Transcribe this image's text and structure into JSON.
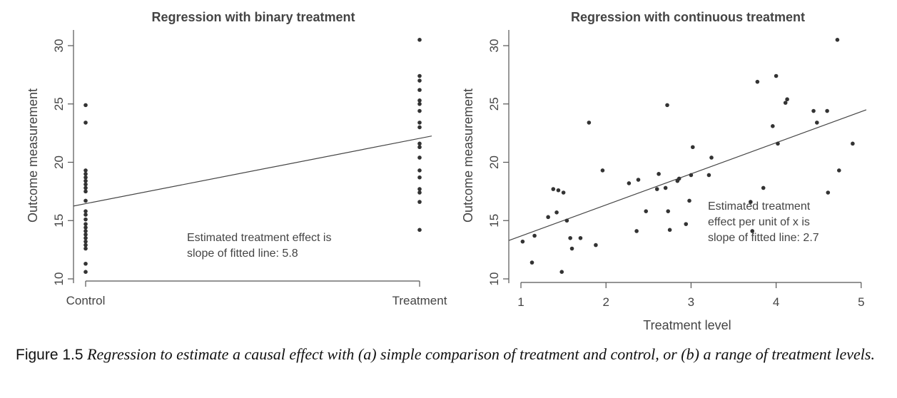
{
  "caption": {
    "label": "Figure 1.5",
    "text": "Regression to estimate a causal effect with (a) simple comparison of treatment and control, or (b) a range of treatment levels."
  },
  "colors": {
    "points": "#333333",
    "line": "#444444",
    "axis": "#555555",
    "text": "#444444"
  },
  "chart_data": [
    {
      "type": "scatter",
      "title": "Regression with binary treatment",
      "xlabel": "",
      "ylabel": "Outcome measurement",
      "x_ticks": [
        {
          "value": 0,
          "label": "Control"
        },
        {
          "value": 1,
          "label": "Treatment"
        }
      ],
      "xlim": [
        0,
        1
      ],
      "ylim": [
        10,
        31
      ],
      "y_ticks": [
        10,
        15,
        20,
        25,
        30
      ],
      "grid": false,
      "series": [
        {
          "points": [
            [
              0,
              24.9
            ],
            [
              0,
              23.4
            ],
            [
              0,
              19.3
            ],
            [
              0,
              19.0
            ],
            [
              0,
              18.7
            ],
            [
              0,
              18.4
            ],
            [
              0,
              18.1
            ],
            [
              0,
              17.8
            ],
            [
              0,
              17.5
            ],
            [
              0,
              16.7
            ],
            [
              0,
              15.8
            ],
            [
              0,
              15.5
            ],
            [
              0,
              15.1
            ],
            [
              0,
              14.7
            ],
            [
              0,
              14.4
            ],
            [
              0,
              14.1
            ],
            [
              0,
              13.8
            ],
            [
              0,
              13.5
            ],
            [
              0,
              13.2
            ],
            [
              0,
              12.9
            ],
            [
              0,
              12.6
            ],
            [
              0,
              11.3
            ],
            [
              0,
              10.6
            ],
            [
              1,
              30.5
            ],
            [
              1,
              27.4
            ],
            [
              1,
              27.0
            ],
            [
              1,
              26.2
            ],
            [
              1,
              25.3
            ],
            [
              1,
              25.0
            ],
            [
              1,
              24.4
            ],
            [
              1,
              23.4
            ],
            [
              1,
              23.0
            ],
            [
              1,
              21.6
            ],
            [
              1,
              21.3
            ],
            [
              1,
              20.4
            ],
            [
              1,
              19.3
            ],
            [
              1,
              18.7
            ],
            [
              1,
              17.7
            ],
            [
              1,
              17.4
            ],
            [
              1,
              16.6
            ],
            [
              1,
              14.2
            ]
          ]
        }
      ],
      "fit_line": {
        "x": [
          -0.045,
          1.045
        ],
        "y": [
          16.2,
          22.3
        ]
      },
      "annotation": [
        "Estimated treatment effect is",
        "slope of fitted line:  5.8"
      ]
    },
    {
      "type": "scatter",
      "title": "Regression with continuous treatment",
      "xlabel": "Treatment level",
      "ylabel": "Outcome measurement",
      "xlim": [
        1,
        5
      ],
      "ylim": [
        10,
        31
      ],
      "x_ticks": [
        1,
        2,
        3,
        4,
        5
      ],
      "y_ticks": [
        10,
        15,
        20,
        25,
        30
      ],
      "grid": false,
      "series": [
        {
          "points": [
            [
              1.02,
              13.2
            ],
            [
              1.13,
              11.4
            ],
            [
              1.16,
              13.7
            ],
            [
              1.32,
              15.3
            ],
            [
              1.38,
              17.7
            ],
            [
              1.42,
              15.7
            ],
            [
              1.44,
              17.6
            ],
            [
              1.48,
              10.6
            ],
            [
              1.5,
              17.4
            ],
            [
              1.54,
              15.0
            ],
            [
              1.58,
              13.5
            ],
            [
              1.6,
              12.6
            ],
            [
              1.7,
              13.5
            ],
            [
              1.8,
              23.4
            ],
            [
              1.88,
              12.9
            ],
            [
              1.96,
              19.3
            ],
            [
              2.27,
              18.2
            ],
            [
              2.36,
              14.1
            ],
            [
              2.38,
              18.5
            ],
            [
              2.47,
              15.8
            ],
            [
              2.6,
              17.7
            ],
            [
              2.62,
              19.0
            ],
            [
              2.7,
              17.8
            ],
            [
              2.72,
              24.9
            ],
            [
              2.73,
              15.8
            ],
            [
              2.75,
              14.2
            ],
            [
              2.84,
              18.4
            ],
            [
              2.86,
              18.6
            ],
            [
              2.94,
              14.7
            ],
            [
              2.98,
              16.7
            ],
            [
              3.0,
              18.9
            ],
            [
              3.02,
              21.3
            ],
            [
              3.21,
              18.9
            ],
            [
              3.24,
              20.4
            ],
            [
              3.7,
              16.6
            ],
            [
              3.72,
              14.1
            ],
            [
              3.78,
              26.9
            ],
            [
              3.85,
              17.8
            ],
            [
              3.96,
              23.1
            ],
            [
              4.0,
              27.4
            ],
            [
              4.02,
              21.6
            ],
            [
              4.11,
              25.1
            ],
            [
              4.13,
              25.4
            ],
            [
              4.44,
              24.4
            ],
            [
              4.48,
              23.4
            ],
            [
              4.6,
              24.4
            ],
            [
              4.61,
              17.4
            ],
            [
              4.72,
              30.5
            ],
            [
              4.74,
              19.3
            ],
            [
              4.9,
              21.6
            ]
          ]
        }
      ],
      "fit_line": {
        "x": [
          0.86,
          5.06
        ],
        "y": [
          13.3,
          24.5
        ]
      },
      "annotation": [
        "Estimated treatment",
        "effect per unit of x is",
        "slope of fitted line:  2.7"
      ]
    }
  ]
}
